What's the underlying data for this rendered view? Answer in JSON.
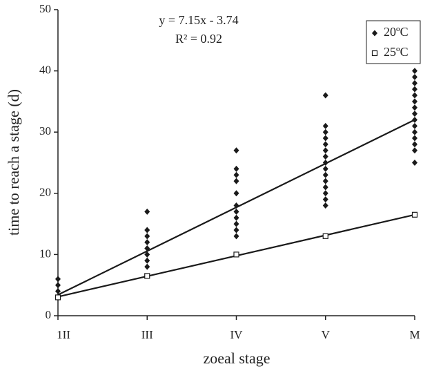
{
  "chart_data": {
    "type": "scatter",
    "categories": [
      "1II",
      "III",
      "IV",
      "V",
      "M"
    ],
    "x_label": "zoeal stage",
    "y_label": "time to reach a stage (d)",
    "ylim": [
      0,
      50
    ],
    "yticks": [
      0,
      10,
      20,
      30,
      40,
      50
    ],
    "annotations": [
      "y = 7.15x - 3.74",
      "R² = 0.92"
    ],
    "legend": "upper right",
    "series": [
      {
        "name": "20ºC",
        "color": "#1a1a1a",
        "marker": "diamond",
        "values": [
          [
            3,
            4,
            5,
            6
          ],
          [
            8,
            9,
            10,
            11,
            12,
            13,
            14,
            17
          ],
          [
            13,
            14,
            15,
            16,
            17,
            18,
            20,
            22,
            23,
            24,
            27
          ],
          [
            18,
            19,
            20,
            21,
            22,
            23,
            24,
            25,
            26,
            27,
            28,
            29,
            30,
            31,
            36
          ],
          [
            25,
            27,
            28,
            29,
            30,
            31,
            32,
            33,
            34,
            35,
            36,
            37,
            38,
            39,
            40
          ]
        ],
        "trend": [
          3.41,
          32.01
        ]
      },
      {
        "name": "25ºC",
        "color": "#1a1a1a",
        "marker": "square",
        "values": [
          [
            3
          ],
          [
            6.5
          ],
          [
            10
          ],
          [
            13
          ],
          [
            16.5
          ]
        ],
        "trend": [
          3.1,
          16.5
        ]
      }
    ]
  }
}
